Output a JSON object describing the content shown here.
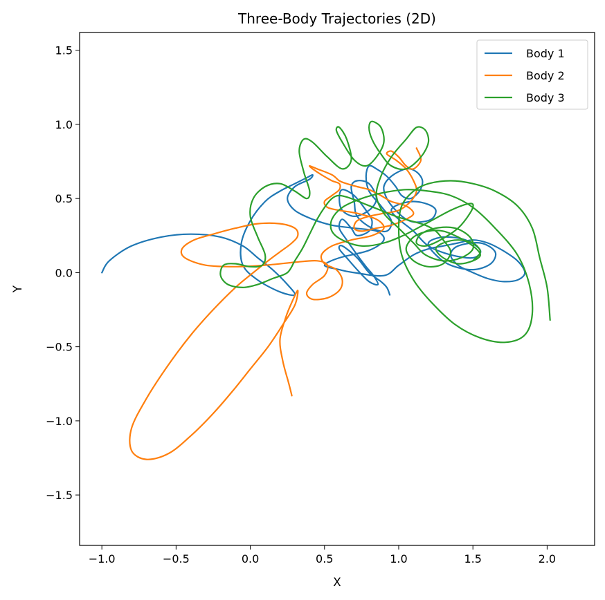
{
  "chart_data": {
    "type": "line",
    "title": "Three-Body Trajectories (2D)",
    "xlabel": "X",
    "ylabel": "Y",
    "xlim": [
      -1.15,
      2.32
    ],
    "ylim": [
      -1.84,
      1.62
    ],
    "xticks": [
      -1.0,
      -0.5,
      0.0,
      0.5,
      1.0,
      1.5,
      2.0
    ],
    "xtick_labels": [
      "−1.0",
      "−0.5",
      "0.0",
      "0.5",
      "1.0",
      "1.5",
      "2.0"
    ],
    "yticks": [
      -1.5,
      -1.0,
      -0.5,
      0.0,
      0.5,
      1.0,
      1.5
    ],
    "ytick_labels": [
      "−1.5",
      "−1.0",
      "−0.5",
      "0.0",
      "0.5",
      "1.0",
      "1.5"
    ],
    "grid": false,
    "legend_position": "top-right",
    "series": [
      {
        "name": "Body 1",
        "color": "#1f77b4",
        "x": [
          -1.0,
          -0.95,
          -0.8,
          -0.6,
          -0.4,
          -0.2,
          -0.05,
          0.05,
          0.15,
          0.25,
          0.3,
          0.2,
          0.05,
          -0.05,
          -0.06,
          0.0,
          0.1,
          0.2,
          0.3,
          0.38,
          0.42,
          0.4,
          0.3,
          0.25,
          0.3,
          0.42,
          0.55,
          0.7,
          0.85,
          0.9,
          0.8,
          0.6,
          0.5,
          0.6,
          0.7,
          0.9,
          1.0,
          1.1,
          1.2,
          1.3,
          1.4,
          1.5,
          1.6,
          1.7,
          1.8,
          1.85,
          1.8,
          1.7,
          1.6,
          1.5,
          1.4,
          1.35,
          1.4,
          1.55,
          1.65,
          1.62,
          1.5,
          1.35,
          1.25,
          1.2,
          1.3,
          1.45,
          1.55,
          1.5,
          1.35,
          1.2,
          1.1,
          1.0,
          0.95,
          1.0,
          1.1,
          1.2,
          1.25,
          1.22,
          1.12,
          1.05,
          0.98,
          0.92,
          0.9,
          0.95,
          1.05,
          1.12,
          1.16,
          1.14,
          1.08,
          1.02,
          0.98,
          0.92,
          0.85,
          0.8,
          0.78,
          0.8,
          0.88,
          0.95,
          0.92,
          0.82,
          0.72,
          0.7,
          0.68,
          0.72,
          0.8,
          0.85,
          0.8,
          0.7,
          0.62,
          0.6,
          0.62,
          0.7,
          0.78,
          0.82,
          0.8,
          0.72,
          0.68,
          0.62,
          0.6,
          0.65,
          0.72,
          0.78,
          0.83,
          0.86,
          0.8,
          0.72,
          0.65,
          0.6,
          0.62,
          0.72,
          0.8,
          0.88,
          0.92,
          0.94
        ],
        "y": [
          0.0,
          0.08,
          0.18,
          0.24,
          0.26,
          0.24,
          0.18,
          0.1,
          0.02,
          -0.08,
          -0.15,
          -0.13,
          -0.05,
          0.05,
          0.2,
          0.35,
          0.48,
          0.55,
          0.6,
          0.64,
          0.66,
          0.63,
          0.58,
          0.5,
          0.42,
          0.36,
          0.32,
          0.3,
          0.28,
          0.22,
          0.15,
          0.1,
          0.05,
          0.02,
          0.0,
          -0.02,
          0.05,
          0.12,
          0.16,
          0.18,
          0.2,
          0.22,
          0.2,
          0.15,
          0.08,
          0.0,
          -0.05,
          -0.06,
          -0.04,
          0.0,
          0.05,
          0.12,
          0.18,
          0.2,
          0.14,
          0.06,
          0.02,
          0.05,
          0.12,
          0.2,
          0.24,
          0.22,
          0.15,
          0.1,
          0.12,
          0.18,
          0.28,
          0.36,
          0.42,
          0.46,
          0.48,
          0.46,
          0.42,
          0.36,
          0.34,
          0.36,
          0.42,
          0.5,
          0.58,
          0.65,
          0.7,
          0.68,
          0.62,
          0.55,
          0.5,
          0.52,
          0.58,
          0.65,
          0.7,
          0.72,
          0.65,
          0.55,
          0.45,
          0.35,
          0.28,
          0.3,
          0.38,
          0.48,
          0.58,
          0.62,
          0.6,
          0.5,
          0.42,
          0.38,
          0.42,
          0.5,
          0.56,
          0.52,
          0.42,
          0.35,
          0.28,
          0.25,
          0.3,
          0.36,
          0.3,
          0.22,
          0.12,
          0.04,
          -0.02,
          -0.08,
          -0.06,
          0.02,
          0.1,
          0.16,
          0.18,
          0.1,
          0.0,
          -0.06,
          -0.1,
          -0.15
        ]
      },
      {
        "name": "Body 2",
        "color": "#ff7f0e",
        "x": [
          0.28,
          0.26,
          0.22,
          0.2,
          0.24,
          0.28,
          0.32,
          0.3,
          0.22,
          0.12,
          0.0,
          -0.12,
          -0.25,
          -0.4,
          -0.55,
          -0.7,
          -0.8,
          -0.8,
          -0.7,
          -0.55,
          -0.4,
          -0.25,
          -0.1,
          0.02,
          0.12,
          0.2,
          0.28,
          0.32,
          0.3,
          0.2,
          0.05,
          -0.1,
          -0.25,
          -0.38,
          -0.46,
          -0.44,
          -0.3,
          -0.1,
          0.1,
          0.3,
          0.45,
          0.52,
          0.5,
          0.42,
          0.38,
          0.42,
          0.52,
          0.6,
          0.62,
          0.58,
          0.5,
          0.48,
          0.55,
          0.68,
          0.82,
          0.9,
          0.85,
          0.72,
          0.6,
          0.52,
          0.5,
          0.55,
          0.6,
          0.6,
          0.55,
          0.48,
          0.42,
          0.4,
          0.45,
          0.55,
          0.6,
          0.65,
          0.72,
          0.8,
          0.88,
          0.95,
          1.05,
          1.1,
          1.05,
          0.95,
          0.85,
          0.75,
          0.7,
          0.72,
          0.8,
          0.9,
          1.0,
          1.08,
          1.12,
          1.1,
          1.05,
          0.98,
          0.92,
          0.95,
          1.0,
          1.05,
          1.1,
          1.15,
          1.12
        ],
        "y": [
          -0.83,
          -0.75,
          -0.6,
          -0.45,
          -0.3,
          -0.2,
          -0.12,
          -0.22,
          -0.35,
          -0.5,
          -0.65,
          -0.8,
          -0.95,
          -1.1,
          -1.22,
          -1.26,
          -1.2,
          -1.05,
          -0.85,
          -0.62,
          -0.42,
          -0.25,
          -0.1,
          0.0,
          0.08,
          0.14,
          0.2,
          0.25,
          0.3,
          0.33,
          0.33,
          0.3,
          0.26,
          0.22,
          0.16,
          0.1,
          0.05,
          0.04,
          0.05,
          0.07,
          0.08,
          0.05,
          -0.02,
          -0.08,
          -0.14,
          -0.18,
          -0.17,
          -0.12,
          -0.05,
          0.02,
          0.06,
          0.12,
          0.18,
          0.22,
          0.25,
          0.3,
          0.36,
          0.4,
          0.42,
          0.44,
          0.48,
          0.52,
          0.56,
          0.6,
          0.62,
          0.66,
          0.7,
          0.72,
          0.7,
          0.66,
          0.62,
          0.6,
          0.58,
          0.56,
          0.52,
          0.48,
          0.45,
          0.4,
          0.36,
          0.32,
          0.3,
          0.28,
          0.3,
          0.35,
          0.38,
          0.4,
          0.42,
          0.48,
          0.55,
          0.62,
          0.7,
          0.76,
          0.8,
          0.82,
          0.78,
          0.72,
          0.7,
          0.76,
          0.84
        ]
      },
      {
        "name": "Body 3",
        "color": "#2ca02c",
        "x": [
          2.02,
          2.0,
          1.95,
          1.9,
          1.8,
          1.65,
          1.5,
          1.35,
          1.2,
          1.1,
          1.02,
          1.0,
          1.02,
          1.1,
          1.22,
          1.38,
          1.55,
          1.72,
          1.85,
          1.9,
          1.88,
          1.8,
          1.65,
          1.5,
          1.35,
          1.2,
          1.05,
          0.9,
          0.75,
          0.62,
          0.55,
          0.55,
          0.62,
          0.75,
          0.9,
          1.05,
          1.2,
          1.35,
          1.45,
          1.5,
          1.48,
          1.4,
          1.28,
          1.18,
          1.12,
          1.15,
          1.25,
          1.38,
          1.48,
          1.5,
          1.42,
          1.3,
          1.18,
          1.1,
          1.0,
          0.9,
          0.85,
          0.88,
          0.95,
          1.05,
          1.12,
          1.18,
          1.2,
          1.15,
          1.05,
          0.95,
          0.88,
          0.82,
          0.8,
          0.82,
          0.88,
          0.9,
          0.85,
          0.78,
          0.7,
          0.62,
          0.58,
          0.6,
          0.65,
          0.68,
          0.62,
          0.52,
          0.42,
          0.36,
          0.33,
          0.36,
          0.4,
          0.38,
          0.3,
          0.2,
          0.1,
          0.02,
          0.0,
          0.05,
          0.1,
          0.08,
          0.0,
          -0.1,
          -0.18,
          -0.2,
          -0.15,
          -0.05,
          0.05,
          0.15,
          0.25,
          0.3,
          0.35,
          0.4,
          0.45,
          0.5,
          0.55,
          0.6,
          0.68,
          0.78,
          0.88,
          0.98,
          1.08,
          1.18,
          1.25,
          1.3,
          1.35,
          1.3,
          1.2,
          1.1,
          1.05,
          1.1,
          1.2,
          1.3,
          1.4,
          1.5,
          1.55,
          1.5,
          1.4,
          1.3,
          1.25,
          1.3,
          1.4,
          1.5,
          1.55,
          1.5
        ],
        "y": [
          -0.32,
          -0.1,
          0.1,
          0.3,
          0.45,
          0.55,
          0.6,
          0.62,
          0.6,
          0.55,
          0.45,
          0.3,
          0.12,
          -0.05,
          -0.2,
          -0.35,
          -0.44,
          -0.47,
          -0.42,
          -0.28,
          -0.08,
          0.12,
          0.3,
          0.44,
          0.52,
          0.55,
          0.56,
          0.54,
          0.5,
          0.44,
          0.36,
          0.28,
          0.22,
          0.18,
          0.2,
          0.26,
          0.34,
          0.42,
          0.46,
          0.46,
          0.4,
          0.3,
          0.22,
          0.18,
          0.2,
          0.26,
          0.3,
          0.3,
          0.24,
          0.16,
          0.1,
          0.08,
          0.12,
          0.2,
          0.3,
          0.4,
          0.52,
          0.65,
          0.78,
          0.9,
          0.98,
          0.96,
          0.88,
          0.78,
          0.7,
          0.72,
          0.8,
          0.9,
          0.98,
          1.02,
          0.98,
          0.88,
          0.78,
          0.72,
          0.76,
          0.88,
          0.96,
          0.98,
          0.9,
          0.76,
          0.7,
          0.78,
          0.88,
          0.9,
          0.82,
          0.68,
          0.55,
          0.5,
          0.55,
          0.6,
          0.58,
          0.5,
          0.38,
          0.24,
          0.12,
          0.05,
          0.04,
          0.06,
          0.05,
          -0.02,
          -0.08,
          -0.1,
          -0.08,
          -0.04,
          0.0,
          0.08,
          0.16,
          0.26,
          0.36,
          0.44,
          0.5,
          0.52,
          0.5,
          0.46,
          0.42,
          0.38,
          0.35,
          0.32,
          0.28,
          0.22,
          0.14,
          0.06,
          0.04,
          0.08,
          0.16,
          0.24,
          0.28,
          0.28,
          0.24,
          0.18,
          0.12,
          0.08,
          0.06,
          0.1,
          0.16,
          0.2,
          0.22,
          0.2,
          0.14,
          0.08
        ]
      }
    ]
  }
}
